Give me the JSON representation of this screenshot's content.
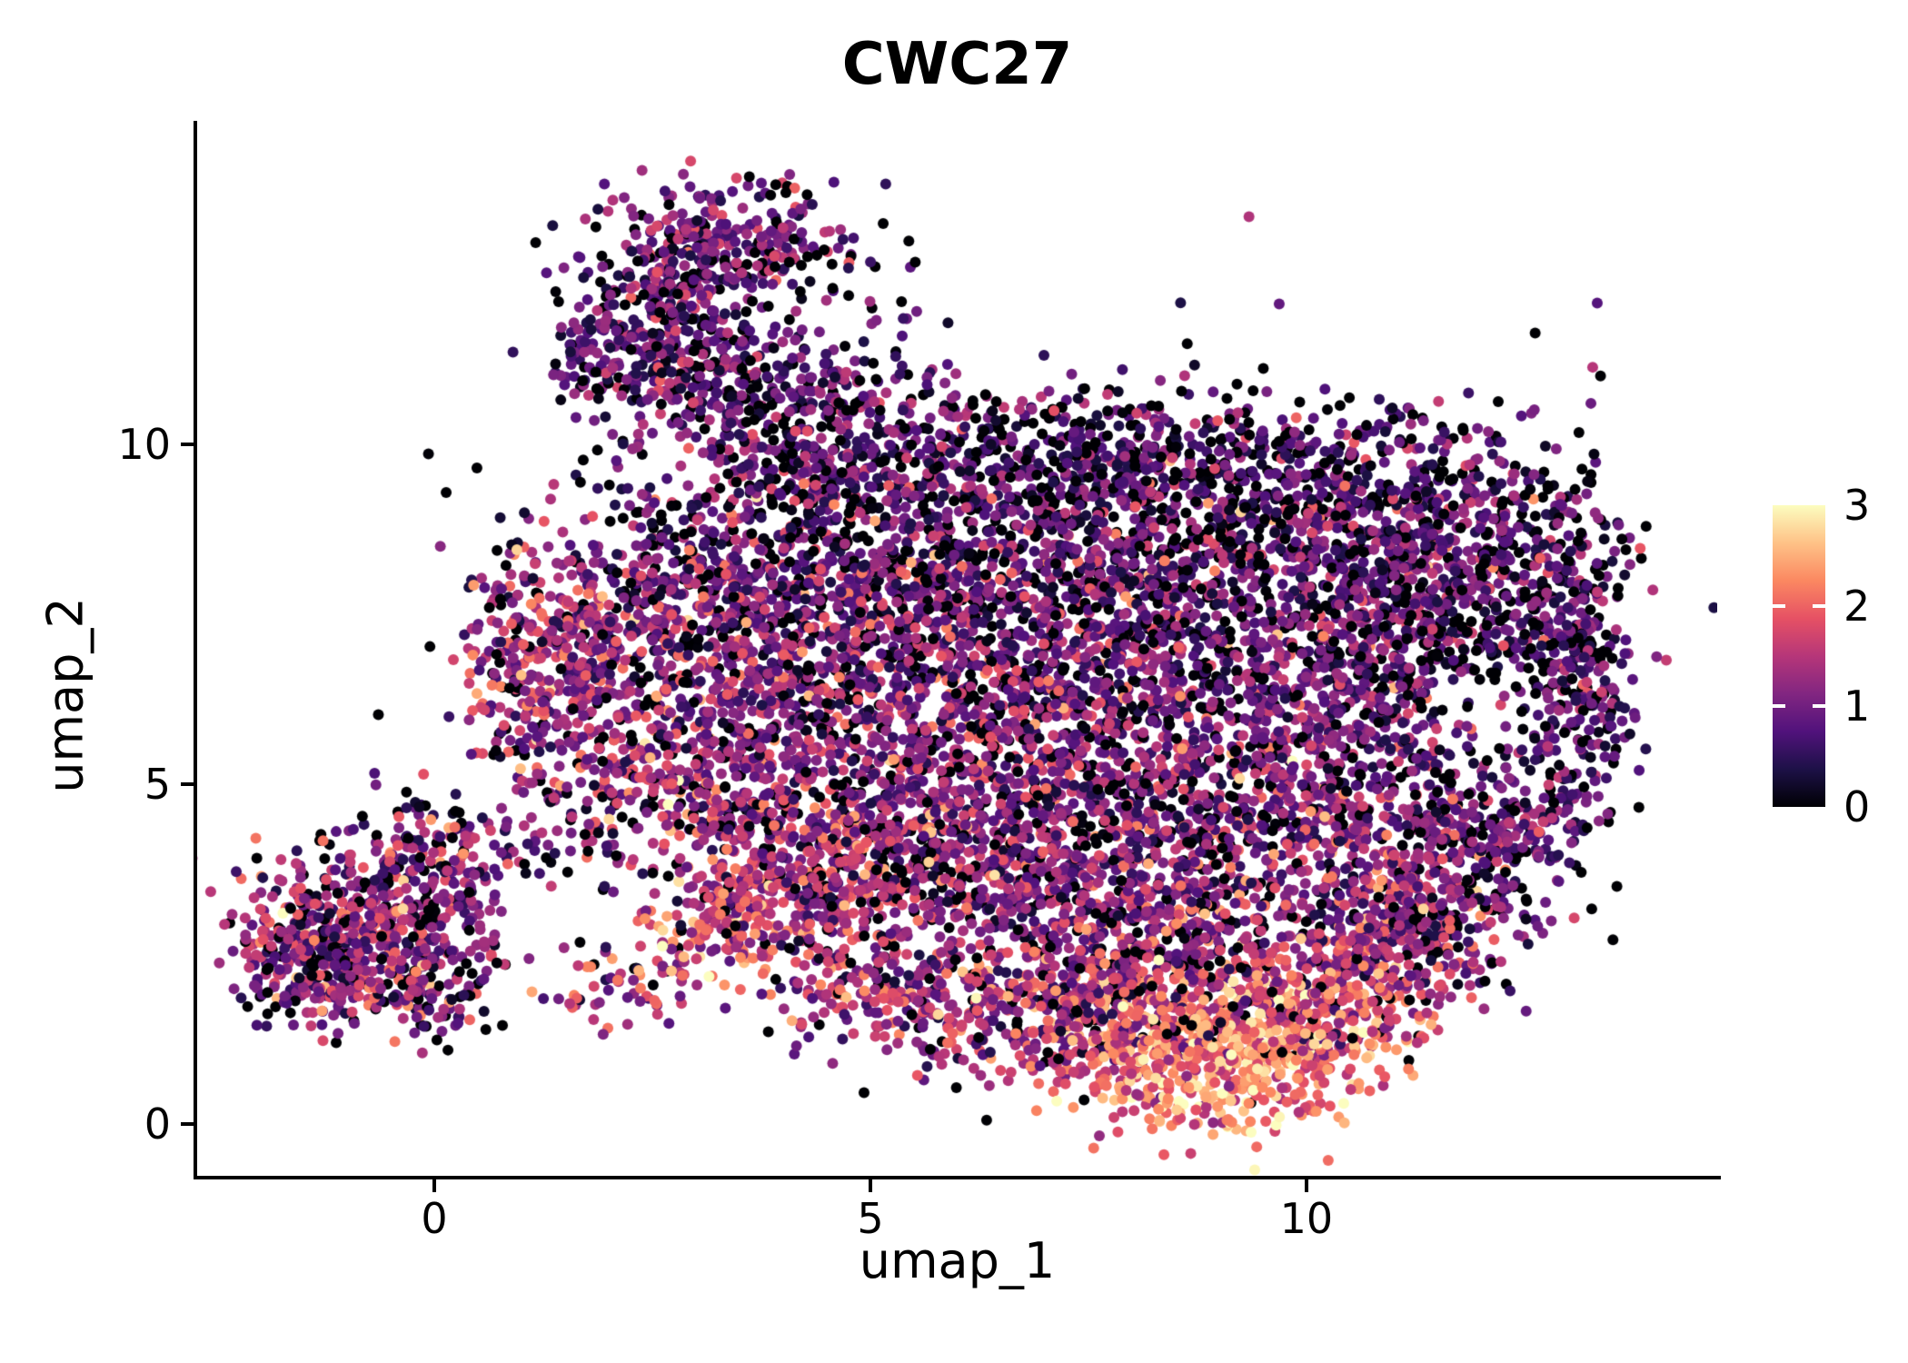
{
  "colors": {
    "background": "#FFFFFF",
    "axis": "#000000",
    "text": "#000000"
  },
  "chart_data": {
    "type": "scatter",
    "title": "CWC27",
    "xlabel": "umap_1",
    "ylabel": "umap_2",
    "xlim": [
      -2.72,
      14.71
    ],
    "ylim": [
      -0.76,
      14.76
    ],
    "x_ticks": [
      0,
      5,
      10
    ],
    "y_ticks": [
      0,
      5,
      10
    ],
    "colorbar_ticks": [
      0,
      1,
      2,
      3
    ],
    "colorbar_notches": [
      1,
      2
    ],
    "color_scale": {
      "name": "magma",
      "domain": [
        0,
        3
      ],
      "stops": [
        "#000004",
        "#1D1147",
        "#51127C",
        "#822681",
        "#B63679",
        "#E65164",
        "#FB8861",
        "#FEC287",
        "#FCFDBF"
      ]
    },
    "point_radius_px": 6,
    "seed": 42,
    "legend_position": "right",
    "grid": false,
    "clusters": [
      {
        "shape": "blob",
        "x": 3.35,
        "y": 12.95,
        "sx": 0.75,
        "sy": 0.45,
        "n": 280,
        "m": 0.95,
        "s": 0.5,
        "z": 0.14
      },
      {
        "shape": "blob",
        "x": 2.75,
        "y": 11.9,
        "sx": 0.5,
        "sy": 0.6,
        "n": 190,
        "m": 0.9,
        "s": 0.5,
        "z": 0.14
      },
      {
        "shape": "blob",
        "x": 3.1,
        "y": 11.2,
        "sx": 0.6,
        "sy": 0.4,
        "n": 120,
        "m": 0.9,
        "s": 0.5,
        "z": 0.15
      },
      {
        "shape": "blob",
        "x": 3.7,
        "y": 10.7,
        "sx": 0.8,
        "sy": 0.45,
        "n": 180,
        "m": 0.85,
        "s": 0.5,
        "z": 0.16
      },
      {
        "shape": "blob",
        "x": 1.85,
        "y": 11.35,
        "sx": 0.27,
        "sy": 0.55,
        "n": 90,
        "m": 0.8,
        "s": 0.45,
        "z": 0.15
      },
      {
        "shape": "blob",
        "x": 4.7,
        "y": 11.8,
        "sx": 0.7,
        "sy": 0.8,
        "n": 26,
        "m": 0.7,
        "s": 0.5,
        "z": 0.25
      },
      {
        "shape": "blob",
        "x": 4.5,
        "y": 9.9,
        "sx": 0.95,
        "sy": 0.5,
        "n": 140,
        "m": 0.8,
        "s": 0.5,
        "z": 0.2
      },
      {
        "shape": "blob",
        "x": 6.3,
        "y": 9.75,
        "sx": 1.3,
        "sy": 0.55,
        "n": 270,
        "m": 0.75,
        "s": 0.5,
        "z": 0.26
      },
      {
        "shape": "blob",
        "x": 8.7,
        "y": 9.75,
        "sx": 1.3,
        "sy": 0.55,
        "n": 300,
        "m": 0.75,
        "s": 0.5,
        "z": 0.26
      },
      {
        "shape": "blob",
        "x": 10.9,
        "y": 9.3,
        "sx": 1.0,
        "sy": 0.6,
        "n": 270,
        "m": 0.75,
        "s": 0.5,
        "z": 0.24
      },
      {
        "shape": "blob",
        "x": 12.35,
        "y": 8.3,
        "sx": 0.65,
        "sy": 0.85,
        "n": 260,
        "m": 0.8,
        "s": 0.5,
        "z": 0.22
      },
      {
        "shape": "blob",
        "x": 4.4,
        "y": 8.6,
        "sx": 1.1,
        "sy": 0.8,
        "n": 430,
        "m": 0.95,
        "s": 0.55,
        "z": 0.17
      },
      {
        "shape": "blob",
        "x": 6.9,
        "y": 8.4,
        "sx": 1.2,
        "sy": 0.8,
        "n": 480,
        "m": 0.9,
        "s": 0.55,
        "z": 0.2
      },
      {
        "shape": "blob",
        "x": 9.4,
        "y": 8.3,
        "sx": 1.2,
        "sy": 0.8,
        "n": 480,
        "m": 0.9,
        "s": 0.55,
        "z": 0.2
      },
      {
        "shape": "blob",
        "x": 11.3,
        "y": 7.7,
        "sx": 0.75,
        "sy": 0.7,
        "n": 300,
        "m": 0.85,
        "s": 0.5,
        "z": 0.2
      },
      {
        "shape": "blob",
        "x": 2.7,
        "y": 7.6,
        "sx": 0.85,
        "sy": 0.9,
        "n": 340,
        "m": 1.1,
        "s": 0.55,
        "z": 0.12
      },
      {
        "shape": "blob",
        "x": 1.6,
        "y": 6.6,
        "sx": 0.55,
        "sy": 0.85,
        "n": 230,
        "m": 1.2,
        "s": 0.6,
        "z": 0.1
      },
      {
        "shape": "blob",
        "x": 0.95,
        "y": 6.9,
        "sx": 0.3,
        "sy": 0.85,
        "n": 120,
        "m": 1.55,
        "s": 0.65,
        "z": 0.07
      },
      {
        "shape": "blob",
        "x": 3.9,
        "y": 6.6,
        "sx": 1.0,
        "sy": 0.9,
        "n": 430,
        "m": 1.1,
        "s": 0.55,
        "z": 0.12
      },
      {
        "shape": "blob",
        "x": 6.1,
        "y": 6.6,
        "sx": 1.2,
        "sy": 0.9,
        "n": 480,
        "m": 1.0,
        "s": 0.55,
        "z": 0.15
      },
      {
        "shape": "blob",
        "x": 8.4,
        "y": 6.5,
        "sx": 1.2,
        "sy": 0.9,
        "n": 480,
        "m": 1.0,
        "s": 0.55,
        "z": 0.15
      },
      {
        "shape": "blob",
        "x": 10.2,
        "y": 6.2,
        "sx": 0.65,
        "sy": 0.9,
        "n": 270,
        "m": 0.95,
        "s": 0.5,
        "z": 0.15
      },
      {
        "shape": "ring",
        "x": 12.1,
        "y": 5.75,
        "rx": 1.2,
        "ry": 1.5,
        "jit": 0.22,
        "n": 300,
        "m": 0.8,
        "s": 0.5,
        "z": 0.22
      },
      {
        "shape": "blob",
        "x": 13.1,
        "y": 6.7,
        "sx": 0.35,
        "sy": 0.95,
        "n": 150,
        "m": 0.75,
        "s": 0.5,
        "z": 0.25
      },
      {
        "shape": "blob",
        "x": 12.05,
        "y": 5.75,
        "sx": 0.55,
        "sy": 0.65,
        "n": 45,
        "m": 0.8,
        "s": 0.5,
        "z": 0.25
      },
      {
        "shape": "blob",
        "x": 2.95,
        "y": 5.1,
        "sx": 0.8,
        "sy": 0.7,
        "n": 310,
        "m": 1.25,
        "s": 0.6,
        "z": 0.1
      },
      {
        "shape": "blob",
        "x": 5.0,
        "y": 4.6,
        "sx": 1.1,
        "sy": 0.8,
        "n": 430,
        "m": 1.2,
        "s": 0.6,
        "z": 0.11
      },
      {
        "shape": "blob",
        "x": 7.3,
        "y": 4.6,
        "sx": 1.2,
        "sy": 0.85,
        "n": 460,
        "m": 1.1,
        "s": 0.6,
        "z": 0.13
      },
      {
        "shape": "blob",
        "x": 9.4,
        "y": 4.4,
        "sx": 1.0,
        "sy": 0.8,
        "n": 380,
        "m": 1.15,
        "s": 0.6,
        "z": 0.12
      },
      {
        "shape": "blob",
        "x": 11.0,
        "y": 3.6,
        "sx": 0.7,
        "sy": 0.7,
        "n": 240,
        "m": 1.1,
        "s": 0.6,
        "z": 0.13
      },
      {
        "shape": "blob",
        "x": 12.3,
        "y": 4.1,
        "sx": 0.5,
        "sy": 0.5,
        "n": 100,
        "m": 0.95,
        "s": 0.5,
        "z": 0.18
      },
      {
        "shape": "blob",
        "x": 3.45,
        "y": 3.05,
        "sx": 0.45,
        "sy": 0.4,
        "n": 170,
        "m": 1.85,
        "s": 0.6,
        "z": 0.04
      },
      {
        "shape": "blob",
        "x": 4.35,
        "y": 3.5,
        "sx": 0.55,
        "sy": 0.5,
        "n": 160,
        "m": 1.35,
        "s": 0.6,
        "z": 0.1
      },
      {
        "shape": "blob",
        "x": 5.9,
        "y": 3.45,
        "sx": 0.9,
        "sy": 0.5,
        "n": 220,
        "m": 1.1,
        "s": 0.55,
        "z": 0.15
      },
      {
        "shape": "blob",
        "x": 7.9,
        "y": 3.3,
        "sx": 1.0,
        "sy": 0.5,
        "n": 260,
        "m": 1.2,
        "s": 0.6,
        "z": 0.12
      },
      {
        "shape": "blob",
        "x": 5.35,
        "y": 2.0,
        "sx": 0.85,
        "sy": 0.4,
        "n": 180,
        "m": 1.25,
        "s": 0.6,
        "z": 0.1
      },
      {
        "shape": "blob",
        "x": 6.7,
        "y": 1.6,
        "sx": 0.8,
        "sy": 0.5,
        "n": 230,
        "m": 1.35,
        "s": 0.6,
        "z": 0.09
      },
      {
        "shape": "blob",
        "x": 7.95,
        "y": 1.35,
        "sx": 0.7,
        "sy": 0.55,
        "n": 270,
        "m": 1.7,
        "s": 0.6,
        "z": 0.06
      },
      {
        "shape": "blob",
        "x": 9.0,
        "y": 0.9,
        "sx": 0.75,
        "sy": 0.5,
        "n": 430,
        "m": 2.3,
        "s": 0.5,
        "z": 0.03
      },
      {
        "shape": "blob",
        "x": 9.95,
        "y": 1.55,
        "sx": 0.6,
        "sy": 0.6,
        "n": 290,
        "m": 1.95,
        "s": 0.55,
        "z": 0.04
      },
      {
        "shape": "blob",
        "x": 10.75,
        "y": 2.4,
        "sx": 0.55,
        "sy": 0.6,
        "n": 200,
        "m": 1.45,
        "s": 0.6,
        "z": 0.09
      },
      {
        "shape": "blob",
        "x": 8.4,
        "y": 2.3,
        "sx": 0.95,
        "sy": 0.5,
        "n": 260,
        "m": 1.45,
        "s": 0.6,
        "z": 0.09
      },
      {
        "shape": "blob",
        "x": 11.65,
        "y": 2.95,
        "sx": 0.5,
        "sy": 0.5,
        "n": 130,
        "m": 1.1,
        "s": 0.55,
        "z": 0.14
      },
      {
        "shape": "blob",
        "x": -0.8,
        "y": 3.1,
        "sx": 0.75,
        "sy": 0.65,
        "n": 430,
        "m": 1.15,
        "s": 0.6,
        "z": 0.11
      },
      {
        "shape": "blob",
        "x": -1.5,
        "y": 2.3,
        "sx": 0.4,
        "sy": 0.45,
        "n": 160,
        "m": 1.1,
        "s": 0.55,
        "z": 0.12
      },
      {
        "shape": "blob",
        "x": -0.2,
        "y": 2.05,
        "sx": 0.55,
        "sy": 0.4,
        "n": 150,
        "m": 1.15,
        "s": 0.6,
        "z": 0.12
      },
      {
        "shape": "blob",
        "x": 0.05,
        "y": 3.95,
        "sx": 0.5,
        "sy": 0.4,
        "n": 120,
        "m": 1.1,
        "s": 0.55,
        "z": 0.14
      },
      {
        "shape": "blob",
        "x": 2.1,
        "y": 2.1,
        "sx": 0.45,
        "sy": 0.3,
        "n": 60,
        "m": 1.55,
        "s": 0.7,
        "z": 0.08
      },
      {
        "shape": "blob",
        "x": 1.7,
        "y": 4.5,
        "sx": 0.45,
        "sy": 0.4,
        "n": 40,
        "m": 1.0,
        "s": 0.5,
        "z": 0.2
      },
      {
        "shape": "blob",
        "x": 7.5,
        "y": 6.8,
        "sx": 3.1,
        "sy": 2.0,
        "n": 330,
        "m": 0.9,
        "s": 0.6,
        "z": 0.22
      },
      {
        "shape": "blob",
        "x": 7.0,
        "y": 10.1,
        "sx": 2.3,
        "sy": 0.45,
        "n": 80,
        "m": 0.7,
        "s": 0.5,
        "z": 0.3
      }
    ]
  }
}
